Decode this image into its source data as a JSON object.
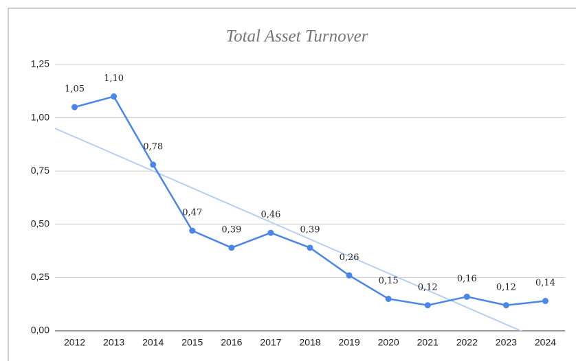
{
  "chart_data": {
    "type": "line",
    "title": "Total Asset Turnover",
    "categories": [
      "2012",
      "2013",
      "2014",
      "2015",
      "2016",
      "2017",
      "2018",
      "2019",
      "2020",
      "2021",
      "2022",
      "2023",
      "2024"
    ],
    "series": [
      {
        "name": "Total Asset Turnover",
        "color": "#4a86e8",
        "values": [
          1.05,
          1.1,
          0.78,
          0.47,
          0.39,
          0.46,
          0.39,
          0.26,
          0.15,
          0.12,
          0.16,
          0.12,
          0.14
        ],
        "value_labels": [
          "1,05",
          "1,10",
          "0,78",
          "0,47",
          "0,39",
          "0,46",
          "0,39",
          "0,26",
          "0,15",
          "0,12",
          "0,16",
          "0,12",
          "0,14"
        ]
      }
    ],
    "ylim": [
      0,
      1.25
    ],
    "yticks": [
      {
        "value": 0,
        "label": "0,00"
      },
      {
        "value": 0.25,
        "label": "0,25"
      },
      {
        "value": 0.5,
        "label": "0,50"
      },
      {
        "value": 0.75,
        "label": "0,75"
      },
      {
        "value": 1,
        "label": "1,00"
      },
      {
        "value": 1.25,
        "label": "1,25"
      }
    ],
    "grid": true,
    "trendline": true,
    "trendline_color": "#b6cff5"
  }
}
